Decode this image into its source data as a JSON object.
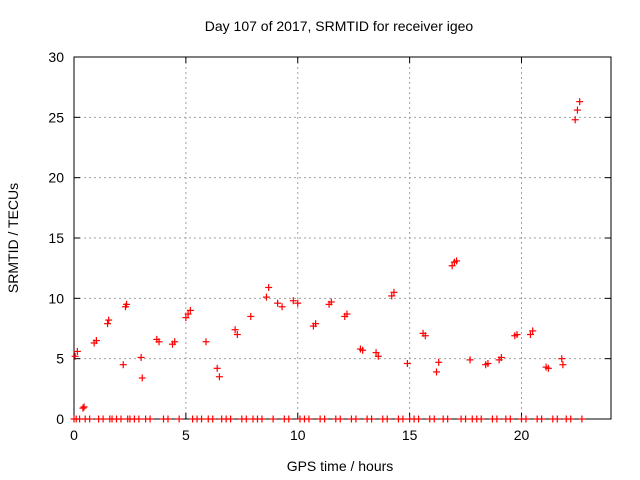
{
  "chart_data": {
    "type": "scatter",
    "title": "Day 107 of 2017, SRMTID for receiver igeo",
    "xlabel": "GPS time / hours",
    "ylabel": "SRMTID / TECUs",
    "xlim": [
      0,
      24
    ],
    "ylim": [
      0,
      30
    ],
    "xticks": [
      0,
      5,
      10,
      15,
      20
    ],
    "yticks": [
      0,
      5,
      10,
      15,
      20,
      25,
      30
    ],
    "grid": true,
    "marker": "plus",
    "color": "#ff0000",
    "x": [
      0.0,
      0.05,
      0.1,
      0.15,
      0.25,
      0.4,
      0.45,
      0.5,
      0.7,
      0.9,
      1.0,
      1.1,
      1.3,
      1.5,
      1.55,
      1.6,
      1.7,
      1.9,
      2.1,
      2.2,
      2.3,
      2.35,
      2.4,
      2.5,
      2.7,
      2.9,
      3.0,
      3.05,
      3.2,
      3.4,
      3.7,
      3.8,
      4.0,
      4.2,
      4.4,
      4.5,
      4.7,
      5.0,
      5.1,
      5.2,
      5.3,
      5.5,
      5.7,
      5.9,
      6.0,
      6.2,
      6.4,
      6.5,
      6.6,
      6.8,
      7.0,
      7.2,
      7.3,
      7.5,
      7.7,
      7.9,
      8.0,
      8.2,
      8.4,
      8.6,
      8.7,
      8.9,
      9.1,
      9.3,
      9.4,
      9.6,
      9.8,
      10.0,
      10.1,
      10.3,
      10.5,
      10.7,
      10.8,
      11.0,
      11.2,
      11.4,
      11.5,
      11.7,
      11.9,
      12.1,
      12.2,
      12.4,
      12.6,
      12.8,
      12.9,
      13.1,
      13.3,
      13.5,
      13.6,
      13.8,
      14.0,
      14.2,
      14.3,
      14.5,
      14.7,
      14.9,
      15.0,
      15.2,
      15.4,
      15.6,
      15.7,
      15.9,
      16.1,
      16.2,
      16.3,
      16.5,
      16.7,
      16.9,
      17.0,
      17.1,
      17.3,
      17.5,
      17.7,
      17.8,
      18.0,
      18.2,
      18.4,
      18.5,
      18.7,
      18.9,
      19.0,
      19.1,
      19.3,
      19.5,
      19.7,
      19.8,
      20.0,
      20.2,
      20.4,
      20.5,
      20.7,
      20.9,
      21.1,
      21.2,
      21.4,
      21.6,
      21.8,
      21.85,
      22.0,
      22.2,
      22.4,
      22.5,
      22.6,
      22.7
    ],
    "y": [
      0,
      5.2,
      0,
      5.6,
      0,
      0.9,
      1.0,
      0,
      0,
      6.3,
      6.5,
      0,
      0,
      7.9,
      8.2,
      0,
      0,
      0,
      0,
      4.5,
      9.3,
      9.5,
      0,
      0,
      0,
      0,
      5.1,
      3.4,
      0,
      0,
      6.6,
      6.4,
      0,
      0,
      6.2,
      6.4,
      0,
      8.4,
      8.7,
      9.0,
      0,
      0,
      0,
      6.4,
      0,
      0,
      4.2,
      3.5,
      0,
      0,
      0,
      7.4,
      7.0,
      0,
      0,
      8.5,
      0,
      0,
      0,
      10.1,
      10.9,
      0,
      9.6,
      9.3,
      0,
      0,
      9.8,
      9.6,
      0,
      0,
      0,
      7.7,
      7.9,
      0,
      0,
      9.5,
      9.7,
      0,
      0,
      8.5,
      8.7,
      0,
      0,
      5.8,
      5.7,
      0,
      0,
      5.5,
      5.2,
      0,
      0,
      10.2,
      10.5,
      0,
      0,
      4.6,
      0,
      0,
      0,
      7.1,
      6.9,
      0,
      0,
      3.9,
      4.7,
      0,
      0,
      12.7,
      13.0,
      13.1,
      0,
      0,
      4.9,
      0,
      0,
      0,
      4.5,
      4.6,
      0,
      0,
      4.9,
      5.1,
      0,
      0,
      6.9,
      7.0,
      0,
      0,
      7.0,
      7.3,
      0,
      0,
      4.3,
      4.2,
      0,
      0,
      5.0,
      4.5,
      0,
      0,
      24.8,
      25.6,
      26.3,
      0
    ]
  }
}
